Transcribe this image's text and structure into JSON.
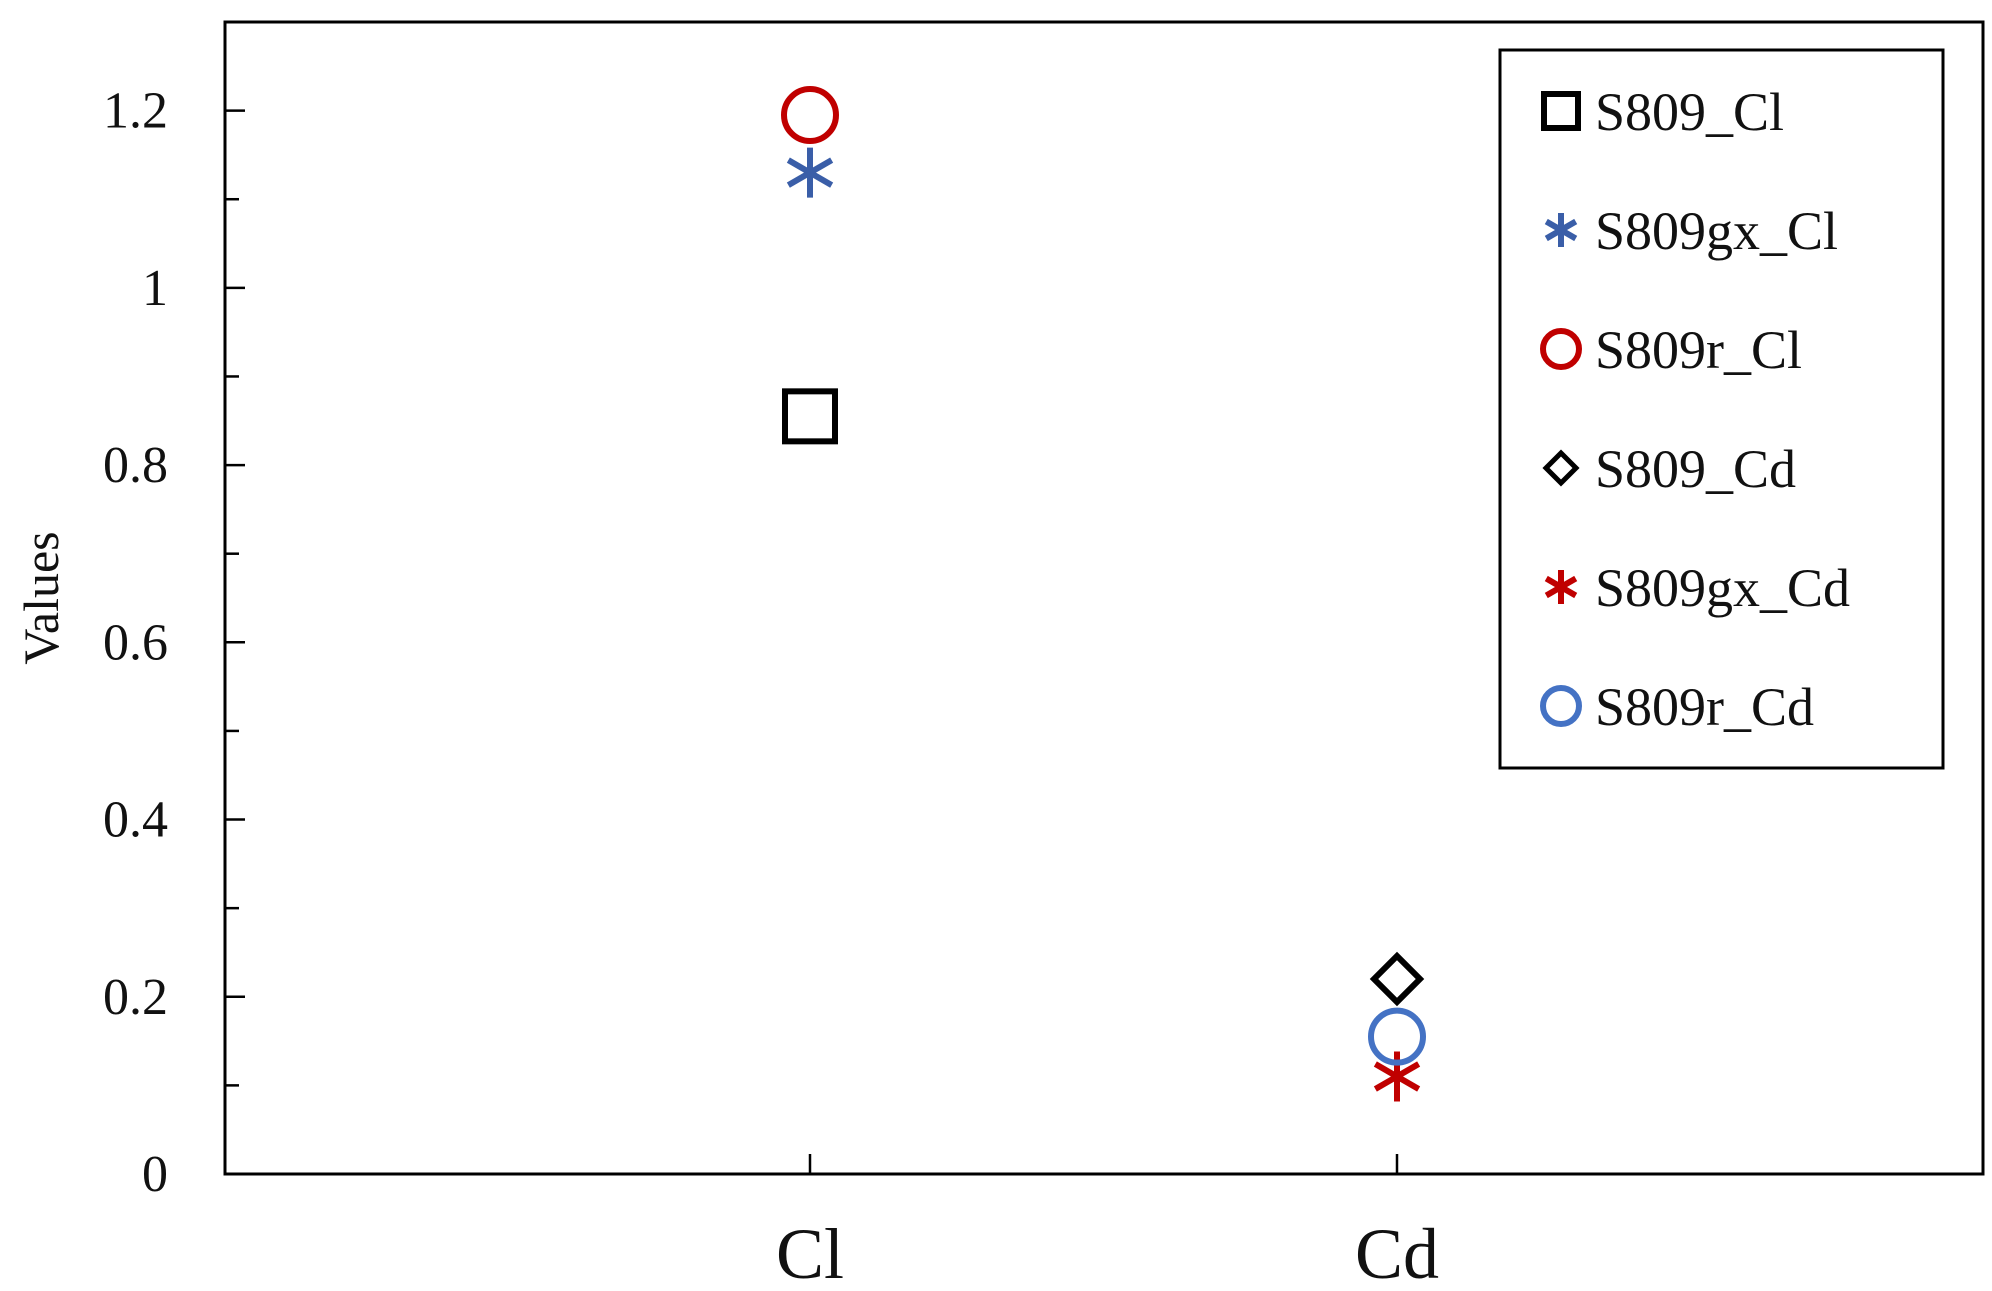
{
  "chart_data": {
    "type": "scatter",
    "title": "",
    "xlabel": "",
    "ylabel": "Values",
    "categories": [
      "Cl",
      "Cd"
    ],
    "ylim": [
      0,
      1.3
    ],
    "yticks": [
      0,
      0.2,
      0.4,
      0.6,
      0.8,
      1,
      1.2
    ],
    "yticks_labels": [
      "0",
      "0.2",
      "0.4",
      "0.6",
      "0.8",
      "1",
      "1.2"
    ],
    "y_minor_step": 0.1,
    "grid": false,
    "legend_position": "top-right",
    "series": [
      {
        "name": "S809_Cl",
        "category": "Cl",
        "value": 0.855,
        "marker": "square",
        "color": "#000000"
      },
      {
        "name": "S809gx_Cl",
        "category": "Cl",
        "value": 1.13,
        "marker": "asterisk",
        "color": "#3a5ea8"
      },
      {
        "name": "S809r_Cl",
        "category": "Cl",
        "value": 1.195,
        "marker": "circle",
        "color": "#c00000"
      },
      {
        "name": "S809_Cd",
        "category": "Cd",
        "value": 0.22,
        "marker": "diamond",
        "color": "#000000"
      },
      {
        "name": "S809gx_Cd",
        "category": "Cd",
        "value": 0.11,
        "marker": "asterisk",
        "color": "#c00000"
      },
      {
        "name": "S809r_Cd",
        "category": "Cd",
        "value": 0.155,
        "marker": "circle",
        "color": "#4472c4"
      }
    ]
  }
}
